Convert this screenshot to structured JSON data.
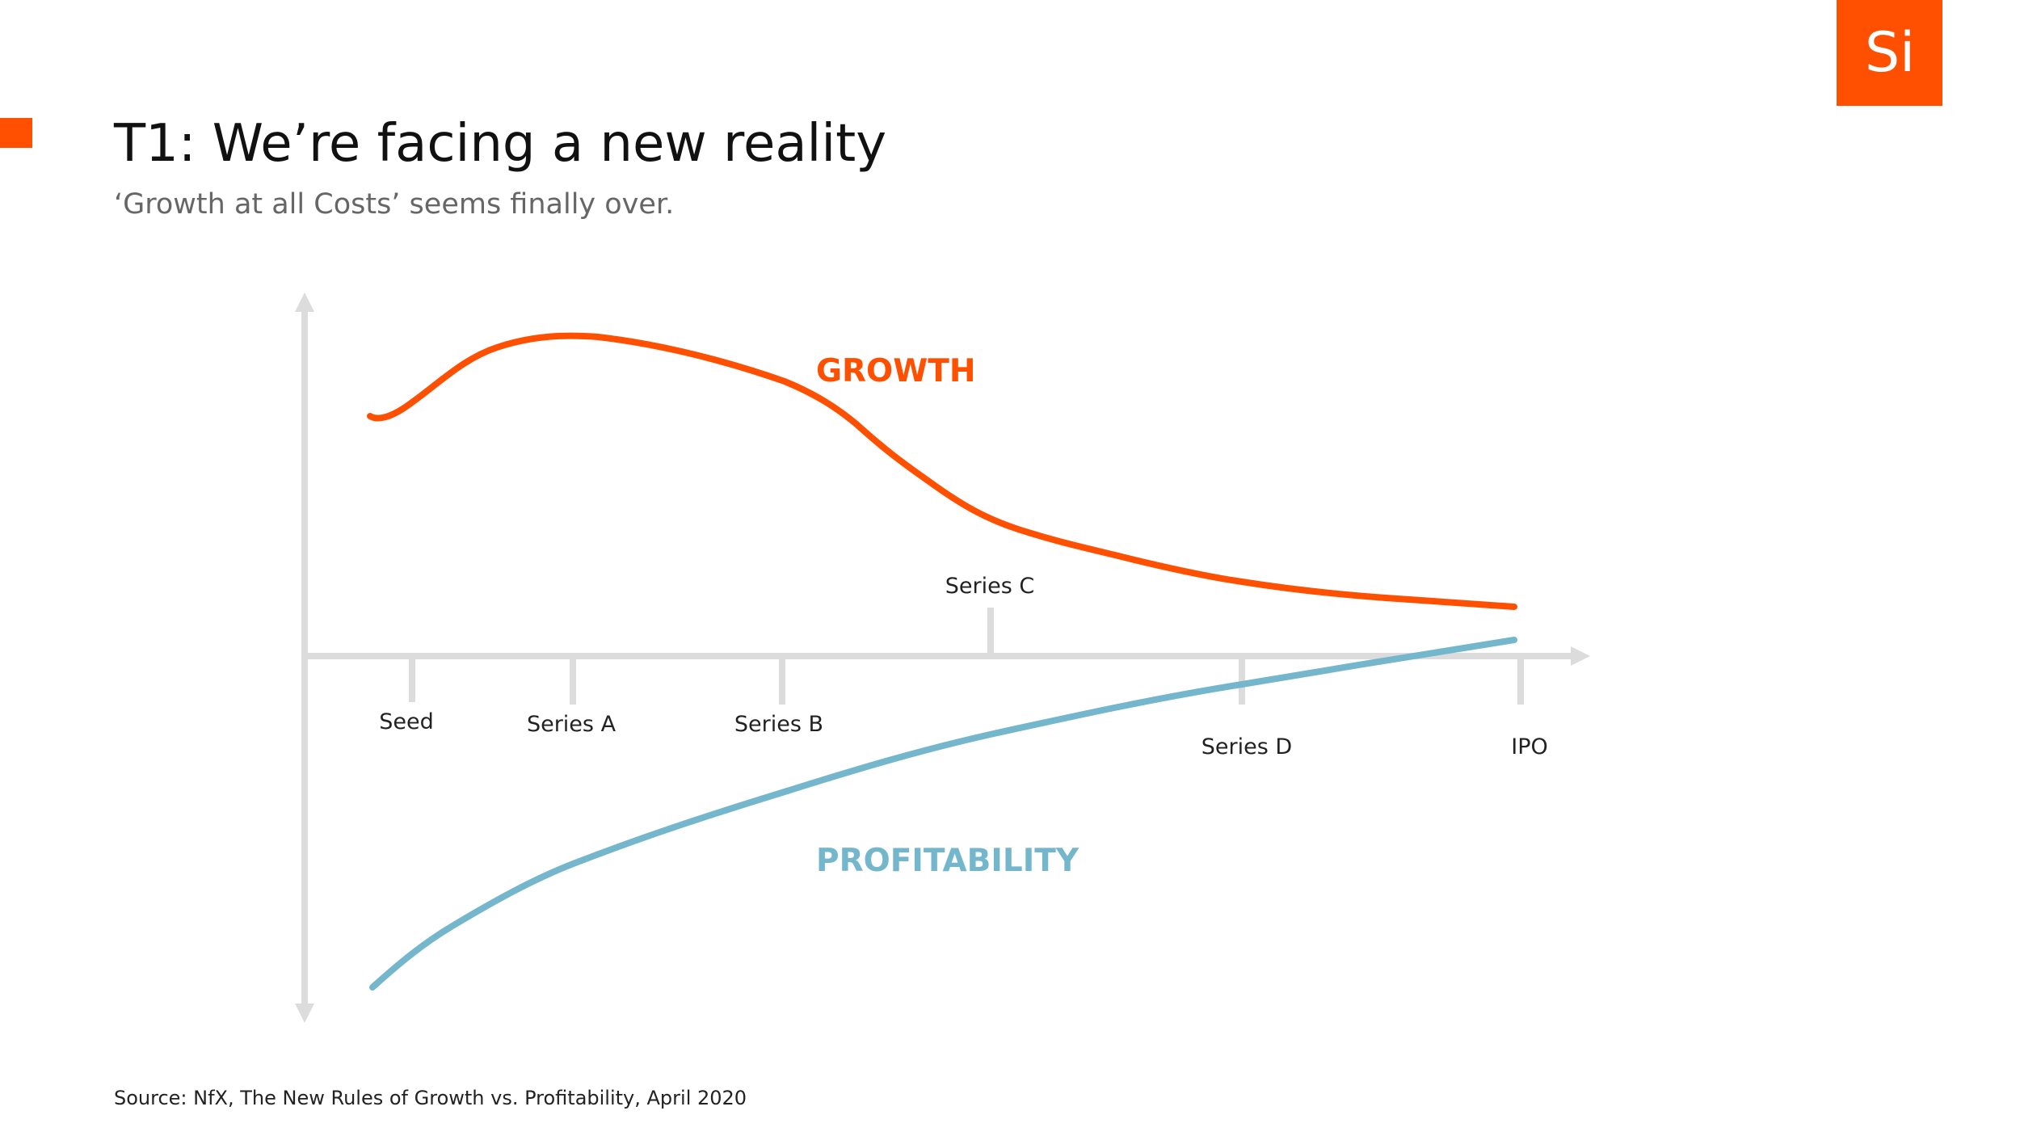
{
  "logo": "Si",
  "title": "T1: We’re facing a new reality",
  "subtitle": "‘Growth at all Costs’ seems finally over.",
  "curves": {
    "growth": "GROWTH",
    "profitability": "PROFITABILITY"
  },
  "stages": [
    "Seed",
    "Series A",
    "Series B",
    "Series C",
    "Series D",
    "IPO"
  ],
  "source": "Source: NfX, The New Rules of Growth vs. Profitability, April 2020"
}
